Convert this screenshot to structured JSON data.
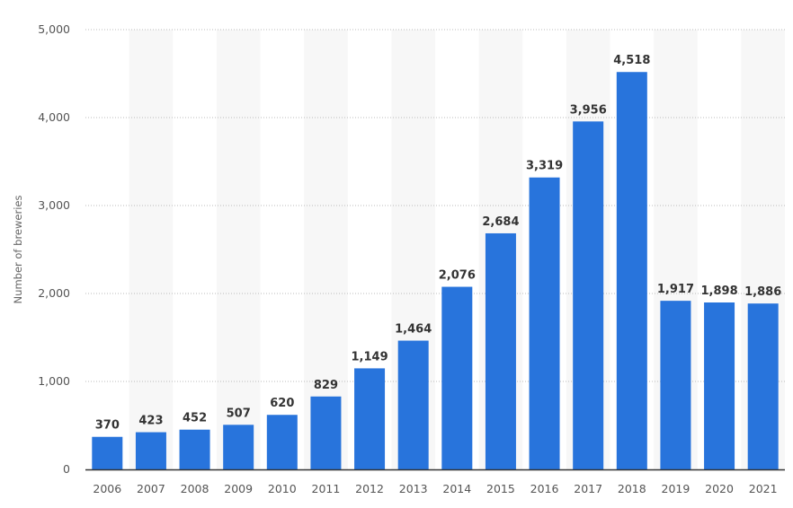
{
  "chart_data": {
    "type": "bar",
    "title": "",
    "xlabel": "",
    "ylabel": "Number of breweries",
    "ylim": [
      0,
      5000
    ],
    "yticks": [
      0,
      1000,
      2000,
      3000,
      4000,
      5000
    ],
    "ytick_labels": [
      "0",
      "1,000",
      "2,000",
      "3,000",
      "4,000",
      "5,000"
    ],
    "grid": true,
    "categories": [
      "2006",
      "2007",
      "2008",
      "2009",
      "2010",
      "2011",
      "2012",
      "2013",
      "2014",
      "2015",
      "2016",
      "2017",
      "2018",
      "2019",
      "2020",
      "2021"
    ],
    "values": [
      370,
      423,
      452,
      507,
      620,
      829,
      1149,
      1464,
      2076,
      2684,
      3319,
      3956,
      4518,
      1917,
      1898,
      1886
    ],
    "value_labels": [
      "370",
      "423",
      "452",
      "507",
      "620",
      "829",
      "1,149",
      "1,464",
      "2,076",
      "2,684",
      "3,319",
      "3,956",
      "4,518",
      "1,917",
      "1,898",
      "1,886"
    ],
    "colors": {
      "bar": "#2874dc",
      "stripe": "#f7f7f7",
      "grid": "#bbbbbb",
      "axis": "#333333"
    }
  }
}
